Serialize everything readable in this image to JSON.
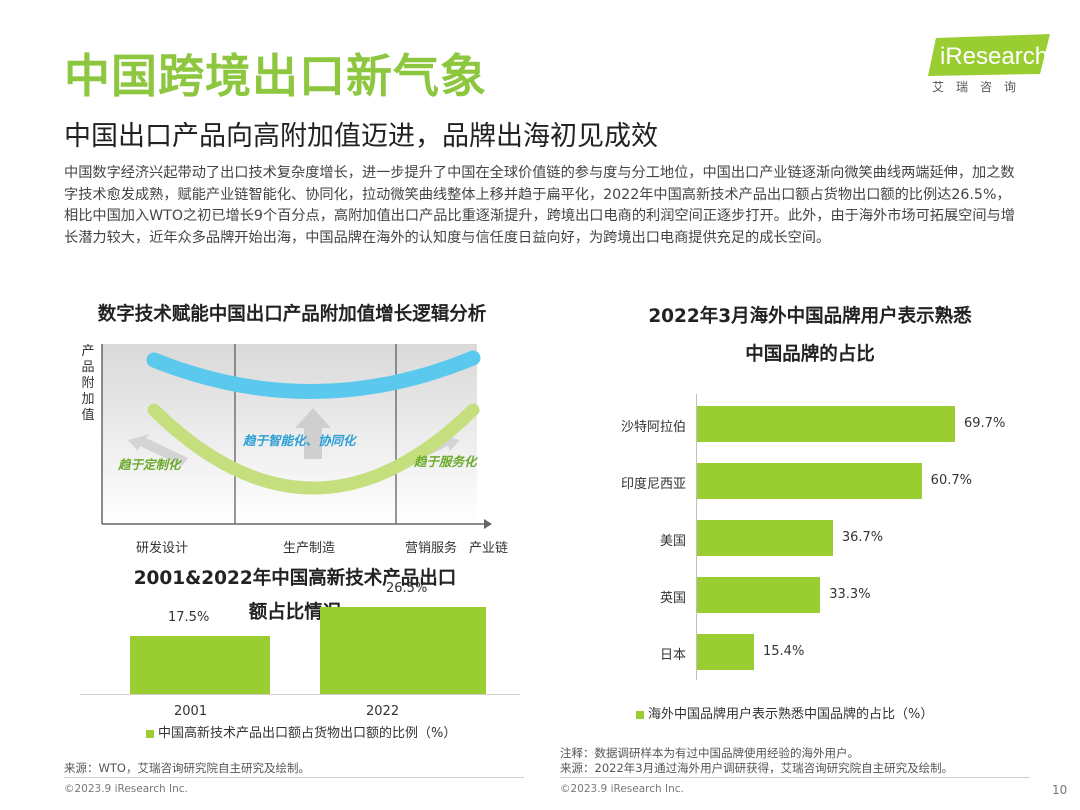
{
  "header": {
    "title": "中国跨境出口新气象",
    "subtitle": "中国出口产品向高附加值迈进，品牌出海初见成效",
    "intro": "中国数字经济兴起带动了出口技术复杂度增长，进一步提升了中国在全球价值链的参与度与分工地位，中国出口产业链逐渐向微笑曲线两端延伸，加之数字技术愈发成熟，赋能产业链智能化、协同化，拉动微笑曲线整体上移并趋于扁平化，2022年中国高新技术产品出口额占货物出口额的比例达26.5%，相比中国加入WTO之初已增长9个百分点，高附加值出口产品比重逐渐提升，跨境出口电商的利润空间正逐步打开。此外，由于海外市场可拓展空间与增长潜力较大，近年众多品牌开始出海，中国品牌在海外的认知度与信任度日益向好，为跨境出口电商提供充足的成长空间。"
  },
  "logo": {
    "brand": "iResearch",
    "sub": "艾瑞咨询"
  },
  "smile_chart": {
    "title": "数字技术赋能中国出口产品附加值增长逻辑分析",
    "y_label": "产品附加值",
    "x_labels": [
      "研发设计",
      "生产制造",
      "营销服务",
      "产业链"
    ],
    "annotations": [
      "趋于定制化",
      "趋于智能化、协同化",
      "趋于服务化"
    ]
  },
  "chart_data": [
    {
      "type": "bar",
      "title": "2001&2022年中国高新技术产品出口额占比情况",
      "title_lines": [
        "2001&2022年中国高新技术产品出口",
        "额占比情况"
      ],
      "categories": [
        "2001",
        "2022"
      ],
      "values": [
        17.5,
        26.5
      ],
      "value_labels": [
        "17.5%",
        "26.5%"
      ],
      "ylim": [
        0,
        30
      ],
      "legend": "中国高新技术产品出口额占货物出口额的比例（%）",
      "legend_position": "bottom"
    },
    {
      "type": "bar",
      "orientation": "horizontal",
      "title": "2022年3月海外中国品牌用户表示熟悉中国品牌的占比",
      "title_lines": [
        "2022年3月海外中国品牌用户表示熟悉",
        "中国品牌的占比"
      ],
      "categories": [
        "沙特阿拉伯",
        "印度尼西亚",
        "美国",
        "英国",
        "日本"
      ],
      "values": [
        69.7,
        60.7,
        36.7,
        33.3,
        15.4
      ],
      "value_labels": [
        "69.7%",
        "60.7%",
        "36.7%",
        "33.3%",
        "15.4%"
      ],
      "xlim": [
        0,
        75
      ],
      "legend": "海外中国品牌用户表示熟悉中国品牌的占比（%）",
      "legend_position": "bottom"
    }
  ],
  "notes": {
    "source_left": "来源：WTO，艾瑞咨询研究院自主研究及绘制。",
    "note_right": "注释：数据调研样本为有过中国品牌使用经验的海外用户。",
    "source_right": "来源：2022年3月通过海外用户调研获得，艾瑞咨询研究院自主研究及绘制。"
  },
  "footer": {
    "copyright_left": "©2023.9 iResearch Inc.",
    "copyright_right": "©2023.9 iResearch Inc.",
    "page_number": "10"
  }
}
